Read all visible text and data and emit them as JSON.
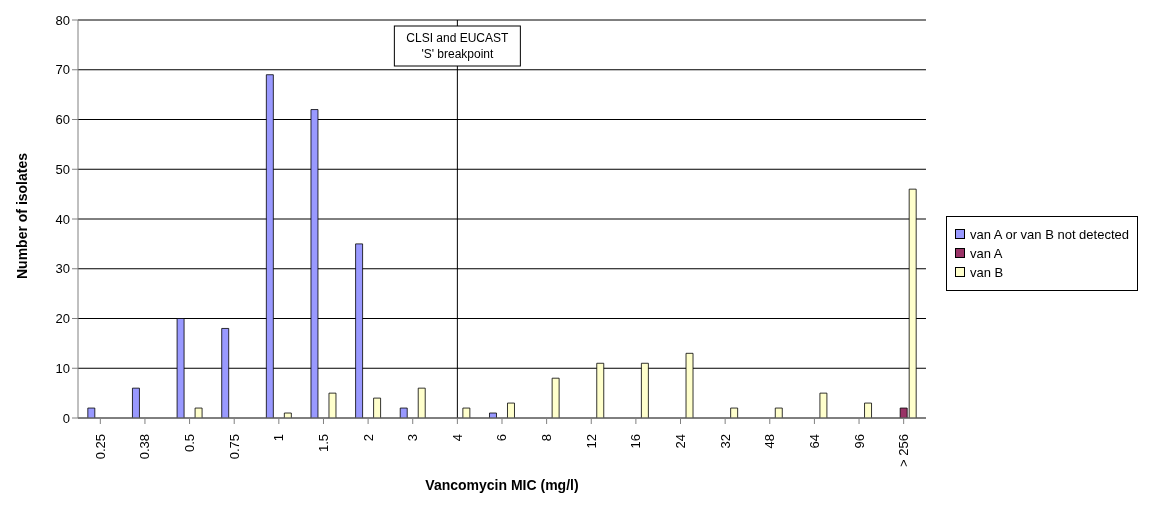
{
  "chart_data": {
    "type": "bar",
    "xlabel": "Vancomycin MIC (mg/l)",
    "ylabel": "Number of isolates",
    "categories": [
      "0.25",
      "0.38",
      "0.5",
      "0.75",
      "1",
      "1.5",
      "2",
      "3",
      "4",
      "6",
      "8",
      "12",
      "16",
      "24",
      "32",
      "48",
      "64",
      "96",
      "> 256"
    ],
    "series": [
      {
        "name": "van A or van B not detected",
        "color": "#9999ff",
        "values": [
          2,
          6,
          20,
          18,
          69,
          62,
          35,
          2,
          0,
          1,
          0,
          0,
          0,
          0,
          0,
          0,
          0,
          0,
          0
        ]
      },
      {
        "name": "van A",
        "color": "#993366",
        "values": [
          0,
          0,
          0,
          0,
          0,
          0,
          0,
          0,
          0,
          0,
          0,
          0,
          0,
          0,
          0,
          0,
          0,
          0,
          2
        ]
      },
      {
        "name": "van B",
        "color": "#ffffcc",
        "values": [
          0,
          0,
          2,
          0,
          1,
          5,
          4,
          6,
          2,
          3,
          8,
          11,
          11,
          13,
          2,
          2,
          5,
          3,
          46
        ]
      }
    ],
    "ylim": [
      0,
      80
    ],
    "yticks": [
      0,
      10,
      20,
      30,
      40,
      50,
      60,
      70,
      80
    ],
    "grid": "y",
    "legend": "right",
    "ref_lines": [
      {
        "axis": "x",
        "value": "4",
        "label": "CLSI and EUCAST 'S' breakpoint",
        "color": "#000000"
      }
    ]
  }
}
